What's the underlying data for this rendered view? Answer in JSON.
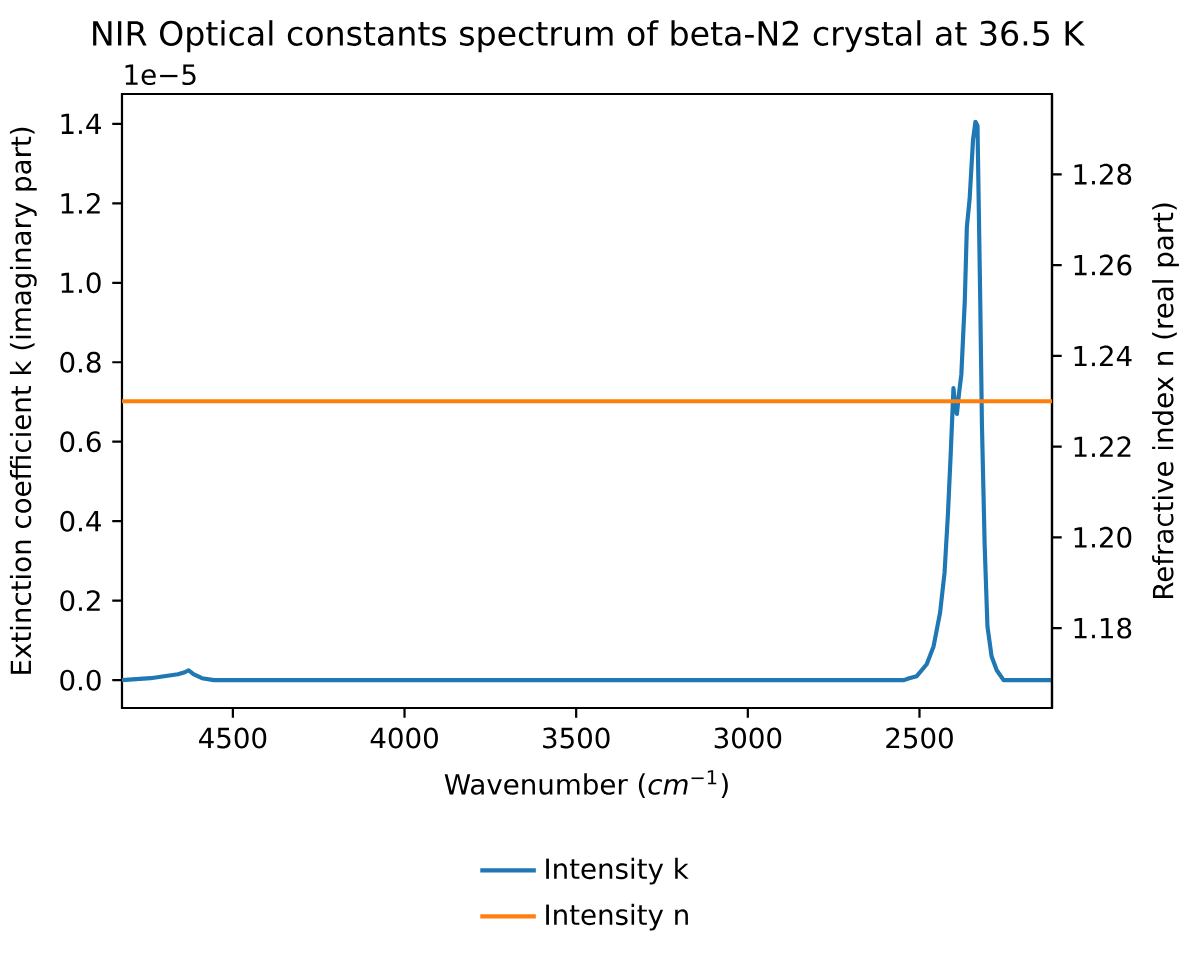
{
  "chart_data": {
    "type": "line",
    "title": "NIR Optical constants spectrum of beta-N2 crystal at 36.5 K",
    "xlabel": "Wavenumber (*cm*$^{−1}$)",
    "ylabel": "Extinction coefficient k (imaginary part)",
    "y2label": "Refractive index n (real part)",
    "annotations": [
      "1e−5"
    ],
    "xlim": [
      4823,
      2114
    ],
    "xticks": [
      4500,
      4000,
      3500,
      3000,
      2500
    ],
    "ylim": [
      -0.07,
      1.475
    ],
    "yticks": [
      {
        "value": 0,
        "label": "0.0"
      },
      0.2,
      0.4,
      0.6,
      0.8,
      {
        "value": 1,
        "label": "1.0"
      },
      1.2,
      1.4
    ],
    "y2lim": [
      1.1624,
      1.2977
    ],
    "y2ticks": [
      1.18,
      {
        "value": 1.2,
        "label": "1.20"
      },
      1.22,
      1.24,
      1.26,
      1.28
    ],
    "legend": "bottom",
    "line_style": "solid",
    "series": [
      {
        "name": "Intensity k",
        "color": "#1f77b4",
        "x": [
          4823,
          4740,
          4700,
          4660,
          4640,
          4629,
          4615,
          4590,
          4555,
          2545,
          2530,
          2508,
          2479,
          2459,
          2440,
          2427,
          2417,
          2409,
          2401,
          2395,
          2391,
          2385,
          2378,
          2368,
          2362,
          2354,
          2344,
          2337,
          2331,
          2327,
          2323,
          2318,
          2310,
          2302,
          2290,
          2275,
          2255,
          2114
        ],
        "values": [
          0,
          0.005,
          0.01,
          0.015,
          0.02,
          0.025,
          0.015,
          0.005,
          0,
          0,
          0.005,
          0.01,
          0.04,
          0.085,
          0.17,
          0.27,
          0.42,
          0.57,
          0.735,
          0.68,
          0.67,
          0.72,
          0.77,
          0.955,
          1.14,
          1.21,
          1.36,
          1.405,
          1.395,
          1.175,
          0.955,
          0.64,
          0.335,
          0.135,
          0.06,
          0.025,
          0,
          0
        ]
      },
      {
        "name": "Intensity n",
        "color": "#ff7f0e",
        "axis": "y2",
        "x": [
          4823,
          2114
        ],
        "values": [
          1.23,
          1.23
        ]
      }
    ]
  }
}
